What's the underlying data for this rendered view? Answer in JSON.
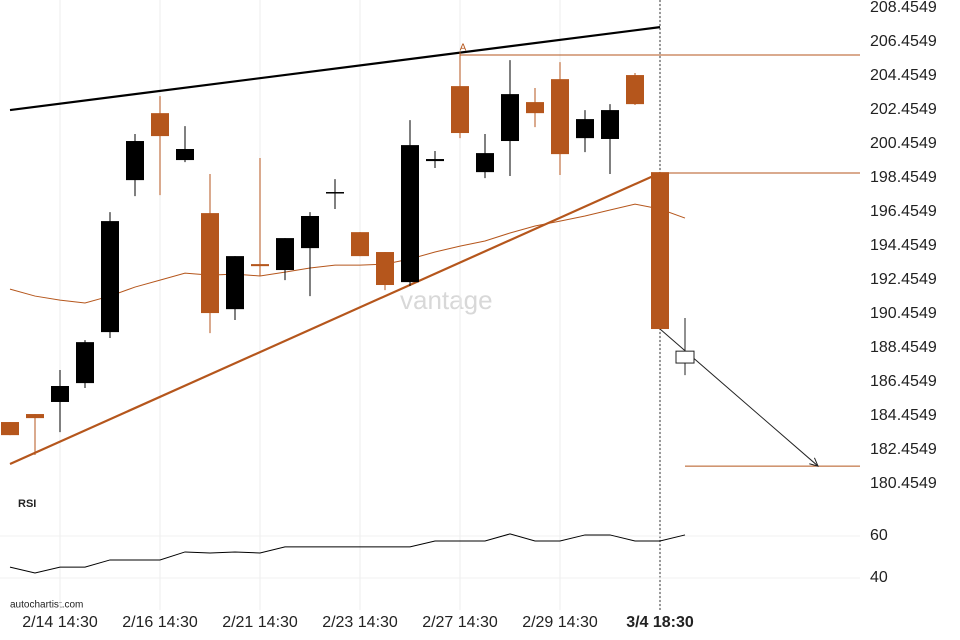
{
  "chart_data": [
    {
      "type": "candlestick",
      "categories": [
        null,
        null,
        "2/14 14:30",
        null,
        null,
        null,
        "2/16 14:30",
        null,
        null,
        null,
        "2/21 14:30",
        null,
        null,
        null,
        "2/23 14:30",
        null,
        null,
        null,
        "2/27 14:30",
        null,
        null,
        null,
        "2/29 14:30",
        null,
        null,
        null,
        "3/4 18:30",
        null
      ],
      "open": [
        184.1,
        184.57,
        185.28,
        186.39,
        189.39,
        198.33,
        202.27,
        199.51,
        196.39,
        190.74,
        193.39,
        193.04,
        194.33,
        197.57,
        195.27,
        194.1,
        192.33,
        199.45,
        203.86,
        198.8,
        200.63,
        202.92,
        204.27,
        200.8,
        200.75,
        204.51,
        198.8,
        187.57
      ],
      "high": [
        184.1,
        184.57,
        187.16,
        188.92,
        196.45,
        201.04,
        203.27,
        201.51,
        198.69,
        193.86,
        199.63,
        194.92,
        196.45,
        198.39,
        195.27,
        194.1,
        201.86,
        200.04,
        205.86,
        201.04,
        205.39,
        203.75,
        205.27,
        202.45,
        202.8,
        204.63,
        198.8,
        190.22
      ],
      "low": [
        183.33,
        182.16,
        183.51,
        186.1,
        189.04,
        197.39,
        197.45,
        199.39,
        189.33,
        190.1,
        192.69,
        192.45,
        191.51,
        196.63,
        193.86,
        191.86,
        192.1,
        199.04,
        200.8,
        198.45,
        198.57,
        201.45,
        198.63,
        199.98,
        198.69,
        202.75,
        189.57,
        186.86
      ],
      "close": [
        183.33,
        184.33,
        186.22,
        188.8,
        195.92,
        200.63,
        200.92,
        200.16,
        190.51,
        193.86,
        193.27,
        194.92,
        196.22,
        197.63,
        193.86,
        192.16,
        200.39,
        199.57,
        201.1,
        199.92,
        203.39,
        202.27,
        199.86,
        201.92,
        202.45,
        202.8,
        189.57,
        188.27
      ],
      "colors": [
        "#b5561c",
        "#b5561c",
        "#000000",
        "#000000",
        "#000000",
        "#000000",
        "#b5561c",
        "#000000",
        "#b5561c",
        "#000000",
        "#b5561c",
        "#000000",
        "#000000",
        "#000000",
        "#b5561c",
        "#b5561c",
        "#000000",
        "#000000",
        "#b5561c",
        "#000000",
        "#000000",
        "#b5561c",
        "#b5561c",
        "#000000",
        "#000000",
        "#b5561c",
        "#b5561c",
        "#ffffff"
      ],
      "ma": {
        "color": "#b5561c",
        "values": [
          191.92,
          191.51,
          191.27,
          191.1,
          191.51,
          192.04,
          192.45,
          192.86,
          192.74,
          192.8,
          192.69,
          192.92,
          193.16,
          193.33,
          193.33,
          193.39,
          193.69,
          194.1,
          194.45,
          194.75,
          195.22,
          195.63,
          195.92,
          196.22,
          196.57,
          196.92,
          196.63,
          196.1
        ]
      },
      "trendlines": [
        {
          "color": "#000000",
          "from": [
            0,
            202.45
          ],
          "to": [
            26,
            207.33
          ]
        },
        {
          "color": "#b5561c",
          "from": [
            0,
            181.63
          ],
          "to": [
            26,
            198.75
          ]
        }
      ],
      "levels": [
        {
          "color": "#b5561c",
          "value": 205.69,
          "from": 18
        },
        {
          "color": "#b5561c",
          "value": 198.75,
          "from": 26
        },
        {
          "color": "#b5561c",
          "value": 181.51,
          "from": 27
        }
      ],
      "annotation": "A",
      "watermark": "vantage",
      "source": "autochartist.com",
      "ylim": [
        180.4549,
        208.4549
      ],
      "yticks": [
        208.4549,
        206.4549,
        204.4549,
        202.4549,
        200.4549,
        198.4549,
        196.4549,
        194.4549,
        192.4549,
        190.4549,
        188.4549,
        186.4549,
        184.4549,
        182.4549,
        180.4549
      ],
      "grid": true
    },
    {
      "type": "line",
      "title": "RSI",
      "color": "#000000",
      "values": [
        45.2,
        42.4,
        45.2,
        45.2,
        48.6,
        48.6,
        48.6,
        52.4,
        51.9,
        52.4,
        51.9,
        54.8,
        54.8,
        54.8,
        54.8,
        54.8,
        54.8,
        57.6,
        57.6,
        57.6,
        61.0,
        57.6,
        57.6,
        60.5,
        60.5,
        57.6,
        57.6,
        60.5
      ],
      "ylim": [
        30,
        80
      ],
      "yticks": [
        40,
        60
      ]
    }
  ]
}
